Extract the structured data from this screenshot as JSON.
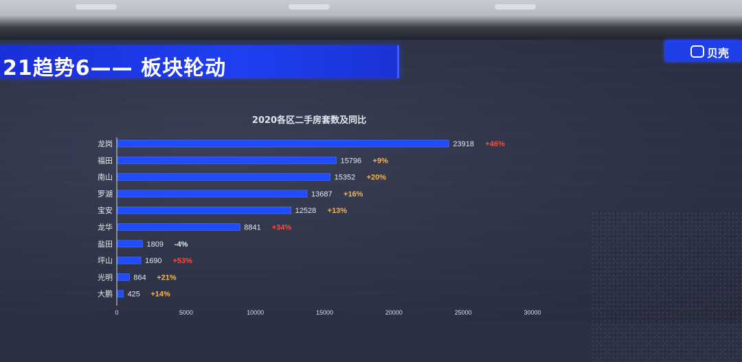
{
  "banner": {
    "title": "21趋势6——  板块轮动"
  },
  "logo": {
    "text": "贝壳",
    "icon": "shell-logo-icon"
  },
  "chart_data": {
    "type": "bar",
    "orientation": "horizontal",
    "title": "2020各区二手房套数及同比",
    "categories": [
      "龙岗",
      "福田",
      "南山",
      "罗湖",
      "宝安",
      "龙华",
      "盐田",
      "坪山",
      "光明",
      "大鹏"
    ],
    "values": [
      23918,
      15796,
      15352,
      13687,
      12528,
      8841,
      1809,
      1690,
      864,
      425
    ],
    "labels": [
      "23918",
      "15796",
      "15352",
      "13687",
      "12528",
      "8841",
      "1809",
      "1690",
      "864",
      "425"
    ],
    "yoy": [
      "+46%",
      "+9%",
      "+20%",
      "+16%",
      "+13%",
      "+34%",
      "-4%",
      "+53%",
      "+21%",
      "+14%"
    ],
    "yoy_colors": [
      "#ff4a3a",
      "#ffb347",
      "#ffb347",
      "#ffb347",
      "#ffb347",
      "#ff4a3a",
      "#e6e8ee",
      "#ff4a3a",
      "#ffb347",
      "#ffb347"
    ],
    "xlim": [
      0,
      30000
    ],
    "xticks": [
      "0",
      "5000",
      "10000",
      "15000",
      "20000",
      "25000",
      "30000"
    ],
    "bar_color": "#1f4cff",
    "grid": false
  }
}
